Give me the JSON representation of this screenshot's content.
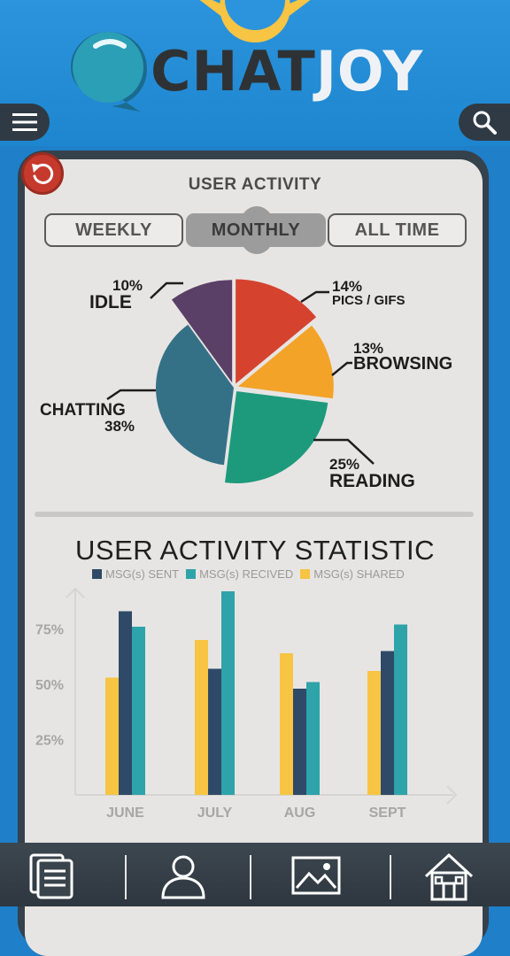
{
  "app": {
    "logo_part1": "CHAT",
    "logo_part2": "JOY"
  },
  "header": {
    "menu_icon": "hamburger-icon",
    "search_icon": "search-icon"
  },
  "activity": {
    "title": "USER ACTIVITY",
    "tabs": [
      {
        "label": "WEEKLY",
        "active": false
      },
      {
        "label": "MONTHLY",
        "active": true
      },
      {
        "label": "ALL TIME",
        "active": false
      }
    ]
  },
  "chart_data": [
    {
      "type": "pie",
      "title": "USER ACTIVITY",
      "slices": [
        {
          "label": "IDLE",
          "percent_label": "10%",
          "value": 10,
          "color": "#5a3f66"
        },
        {
          "label": "PICS / GIFS",
          "percent_label": "14%",
          "value": 14,
          "color": "#d5432f"
        },
        {
          "label": "BROWSING",
          "percent_label": "13%",
          "value": 13,
          "color": "#f3a328"
        },
        {
          "label": "READING",
          "percent_label": "25%",
          "value": 25,
          "color": "#1d9a7c"
        },
        {
          "label": "CHATTING",
          "percent_label": "38%",
          "value": 38,
          "color": "#357186"
        }
      ]
    },
    {
      "type": "bar",
      "title": "USER ACTIVITY STATISTIC",
      "categories": [
        "JUNE",
        "JULY",
        "AUG",
        "SEPT"
      ],
      "y_ticks": [
        "75%",
        "50%",
        "25%"
      ],
      "ylim": [
        0,
        100
      ],
      "series": [
        {
          "name": "MSG(s) SHARED",
          "color": "#f7c443",
          "values": [
            53,
            70,
            64,
            56
          ]
        },
        {
          "name": "MSG(s) SENT",
          "color": "#2f4a68",
          "values": [
            83,
            57,
            48,
            65
          ]
        },
        {
          "name": "MSG(s) RECIVED",
          "color": "#2ea3a9",
          "values": [
            76,
            92,
            51,
            77
          ]
        }
      ],
      "legend_order": [
        "MSG(s) SENT",
        "MSG(s) RECIVED",
        "MSG(s) SHARED"
      ]
    }
  ],
  "bottom_nav": [
    {
      "icon": "document-icon"
    },
    {
      "icon": "user-icon"
    },
    {
      "icon": "image-icon"
    },
    {
      "icon": "home-icon"
    }
  ]
}
